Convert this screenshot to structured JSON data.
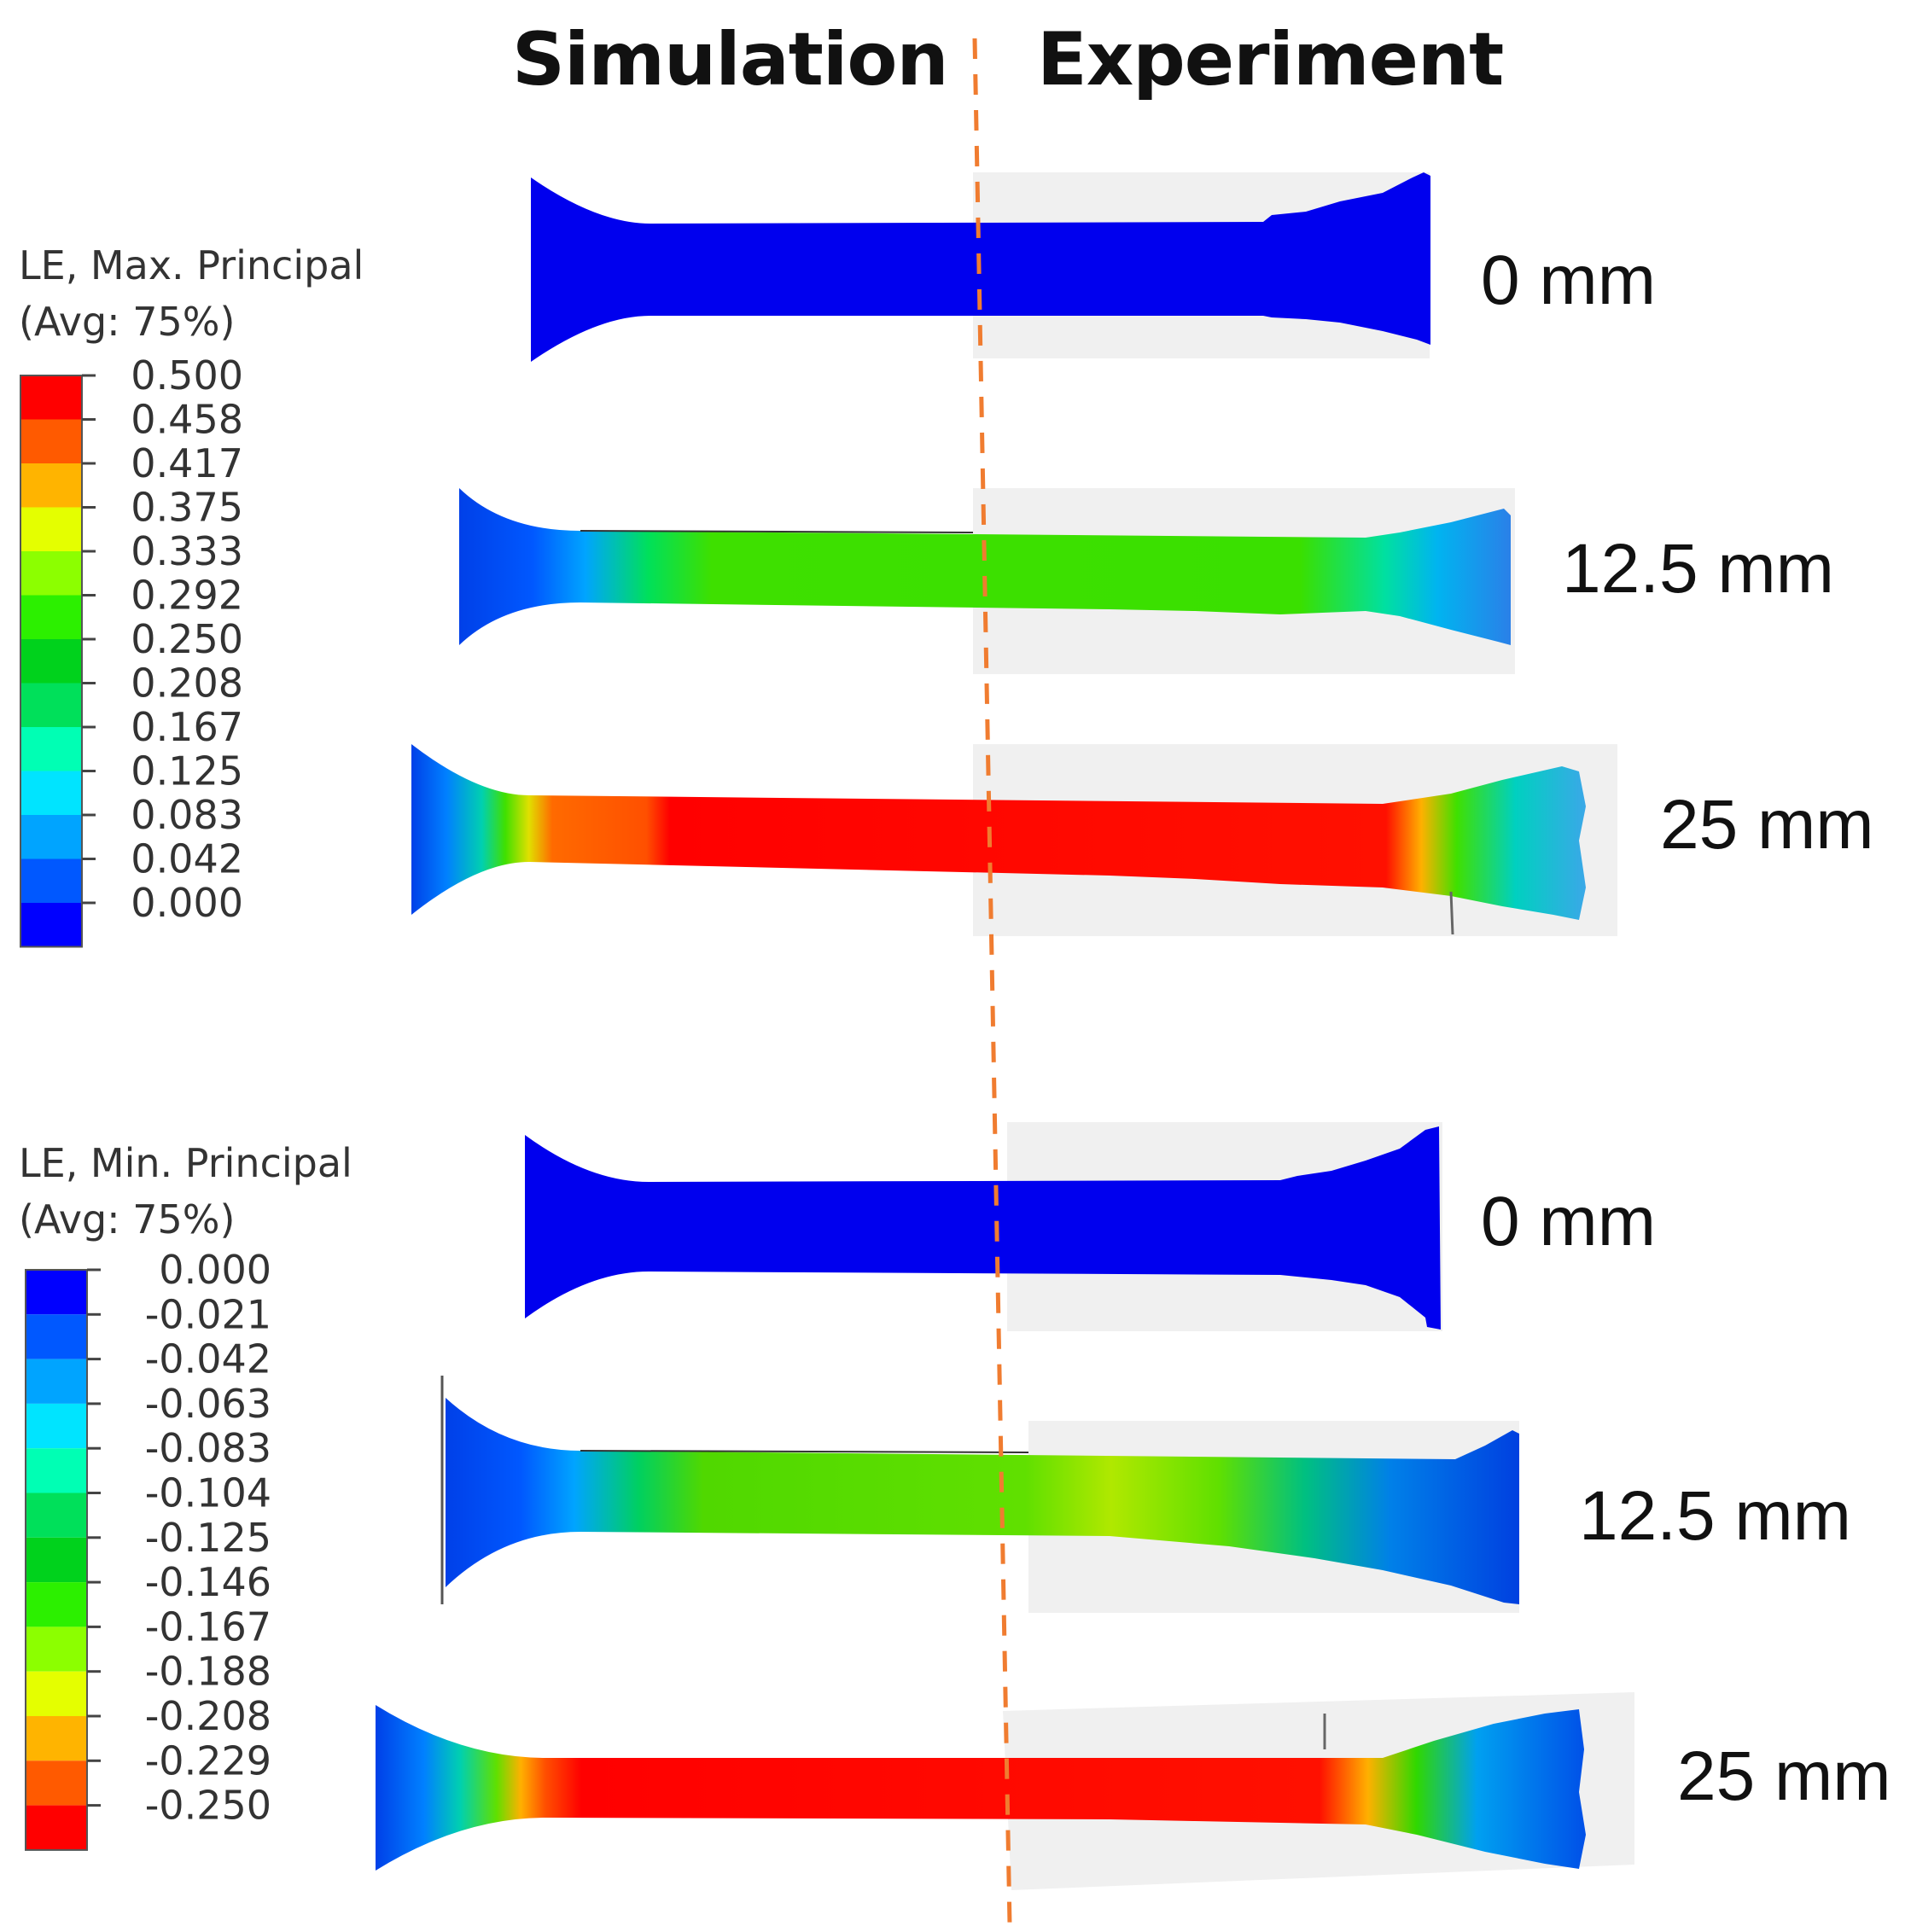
{
  "headers": {
    "simulation": "Simulation",
    "experiment": "Experiment"
  },
  "legend_max": {
    "title_line1": "LE, Max. Principal",
    "title_line2": "(Avg: 75%)",
    "ticks": [
      "0.500",
      "0.458",
      "0.417",
      "0.375",
      "0.333",
      "0.292",
      "0.250",
      "0.208",
      "0.167",
      "0.125",
      "0.083",
      "0.042",
      "0.000"
    ],
    "colors": [
      "#ff0000",
      "#ff5a00",
      "#ffb400",
      "#e4ff00",
      "#8cff00",
      "#2cf000",
      "#00d21c",
      "#00e05a",
      "#00ffb4",
      "#00e4ff",
      "#00a4ff",
      "#0058ff",
      "#0000ff"
    ]
  },
  "legend_min": {
    "title_line1": "LE, Min. Principal",
    "title_line2": "(Avg: 75%)",
    "ticks": [
      "0.000",
      "-0.021",
      "-0.042",
      "-0.063",
      "-0.083",
      "-0.104",
      "-0.125",
      "-0.146",
      "-0.167",
      "-0.188",
      "-0.208",
      "-0.229",
      "-0.250"
    ],
    "colors": [
      "#0000ff",
      "#0058ff",
      "#00a4ff",
      "#00e4ff",
      "#00ffb4",
      "#00e05a",
      "#00d21c",
      "#2cf000",
      "#8cff00",
      "#e4ff00",
      "#ffb400",
      "#ff5a00",
      "#ff0000"
    ]
  },
  "top_panel": {
    "labels": [
      "0 mm",
      "12.5 mm",
      "25 mm"
    ]
  },
  "bottom_panel": {
    "labels": [
      "0 mm",
      "12.5 mm",
      "25 mm"
    ]
  },
  "colors": {
    "divider": "#f07c30",
    "background_photo": "#f0f0f0"
  }
}
